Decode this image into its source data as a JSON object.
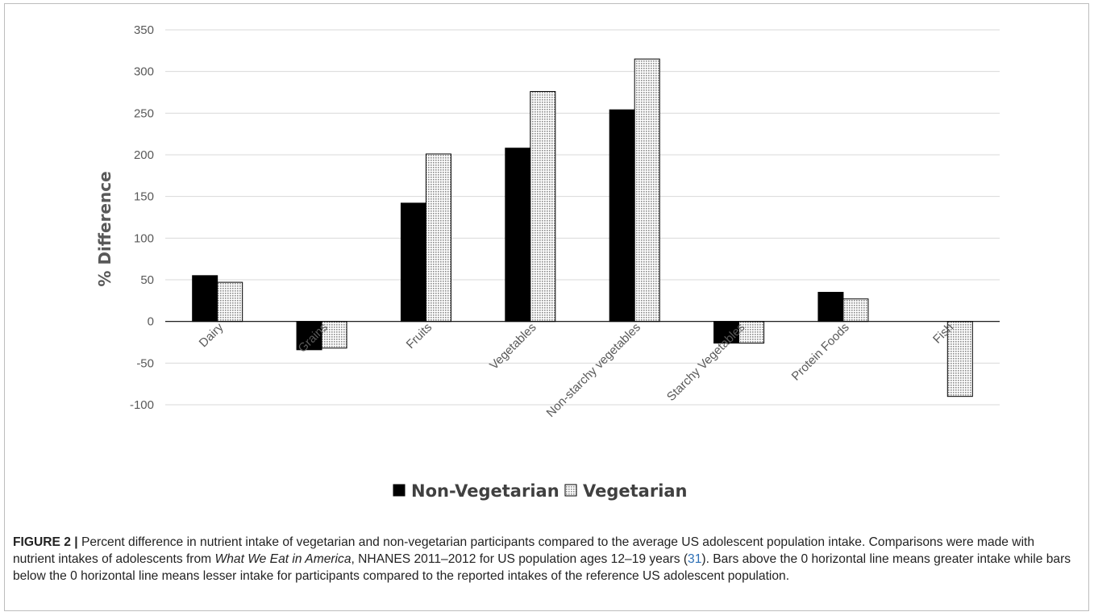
{
  "chart_data": {
    "type": "bar",
    "categories": [
      "Dairy",
      "Grains",
      "Fruits",
      "Vegetables",
      "Non-starchy vegetables",
      "Starchy Vegetables",
      "Protein Foods",
      "Fish"
    ],
    "series": [
      {
        "name": "Non-Vegetarian",
        "values": [
          55,
          -34,
          142,
          208,
          254,
          -26,
          35,
          0
        ],
        "color": "#000000"
      },
      {
        "name": "Vegetarian",
        "values": [
          47,
          -32,
          201,
          276,
          315,
          -26,
          27,
          -90
        ],
        "color": "#d4d4d4"
      }
    ],
    "ylabel": "% Difference",
    "xlabel": "",
    "ylim": [
      -100,
      350
    ],
    "yticks": [
      -100,
      -50,
      0,
      50,
      100,
      150,
      200,
      250,
      300,
      350
    ],
    "grid": true,
    "legend_position": "bottom"
  },
  "caption": {
    "label": "FIGURE 2 |",
    "text_1": " Percent difference in nutrient intake of vegetarian and non-vegetarian participants compared to the average US adolescent population intake. Comparisons were made with nutrient intakes of adolescents from ",
    "italic": "What We Eat in America",
    "text_2": ", NHANES 2011–2012 for US population ages 12–19 years (",
    "ref": "31",
    "text_3": "). Bars above the 0 horizontal line means greater intake while bars below the 0 horizontal line means lesser intake for participants compared to the reported intakes of the reference US adolescent population."
  }
}
